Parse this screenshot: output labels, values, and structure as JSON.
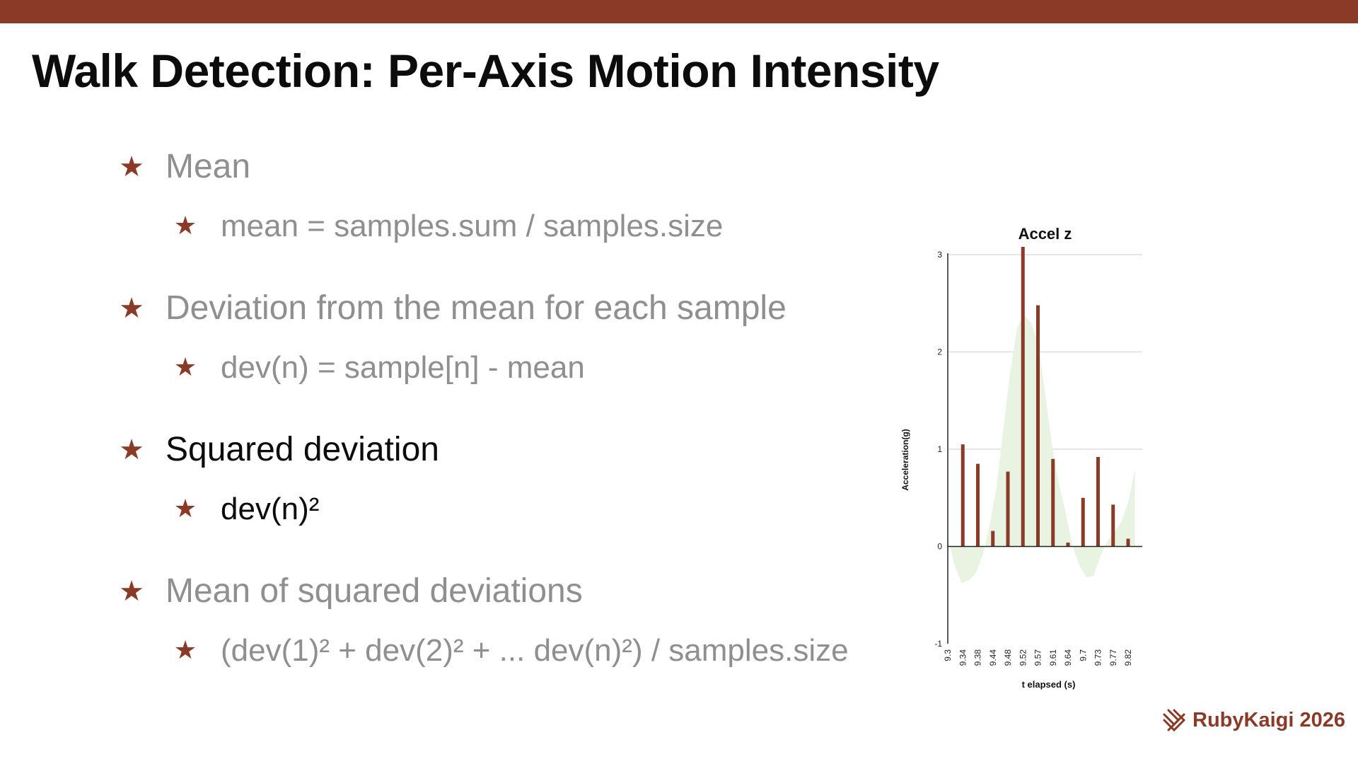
{
  "colors": {
    "accent": "#8a3a27",
    "text_active": "#0c0c0c",
    "text_muted": "#8f8f8f",
    "area_fill": "#e9f3e2",
    "grid": "#d6d6d6"
  },
  "slide": {
    "title": "Walk Detection: Per-Axis Motion Intensity",
    "bullet_icon": "star-icon",
    "bullets": [
      {
        "text": "Mean",
        "state": "muted",
        "sub": "mean = samples.sum / samples.size"
      },
      {
        "text": "Deviation from the mean for each sample",
        "state": "muted",
        "sub": "dev(n) = sample[n] - mean"
      },
      {
        "text": "Squared deviation",
        "state": "active",
        "sub": "dev(n)²"
      },
      {
        "text": "Mean of squared deviations",
        "state": "muted",
        "sub": "(dev(1)² + dev(2)² + ... dev(n)²) / samples.size"
      }
    ]
  },
  "chart_data": {
    "type": "bar",
    "title": "Accel z",
    "xlabel": "t elapsed (s)",
    "ylabel": "Acceleration(g)",
    "ylim": [
      -1,
      3
    ],
    "yticks": [
      -1,
      0,
      1,
      2,
      3
    ],
    "grid": true,
    "x_tick_labels": [
      "9.3",
      "9.34",
      "9.38",
      "9.44",
      "9.48",
      "9.52",
      "9.57",
      "9.61",
      "9.64",
      "9.7",
      "9.73",
      "9.77",
      "9.82"
    ],
    "bars": {
      "categories": [
        "9.34",
        "9.38",
        "9.44",
        "9.48",
        "9.52",
        "9.57",
        "9.61",
        "9.64",
        "9.7",
        "9.73",
        "9.77",
        "9.82"
      ],
      "values": [
        1.05,
        0.85,
        0.16,
        0.77,
        3.08,
        2.48,
        0.9,
        0.04,
        0.5,
        0.92,
        0.43,
        0.08
      ]
    },
    "area": {
      "x": [
        9.3,
        9.32,
        9.34,
        9.36,
        9.38,
        9.4,
        9.42,
        9.44,
        9.46,
        9.48,
        9.5,
        9.52,
        9.54,
        9.56,
        9.58,
        9.6,
        9.62,
        9.64,
        9.66,
        9.68,
        9.7,
        9.72,
        9.74,
        9.76,
        9.78,
        9.8,
        9.82,
        9.84
      ],
      "y": [
        0.1,
        -0.2,
        -0.38,
        -0.35,
        -0.28,
        -0.1,
        0.2,
        0.6,
        1.2,
        1.8,
        2.25,
        2.38,
        2.3,
        2.1,
        1.6,
        1.05,
        0.65,
        0.35,
        0.0,
        -0.2,
        -0.32,
        -0.3,
        -0.1,
        0.05,
        0.15,
        0.25,
        0.45,
        0.8
      ]
    }
  },
  "logo": {
    "icon": "rubykaigi-logo-icon",
    "text": "RubyKaigi 2026"
  }
}
